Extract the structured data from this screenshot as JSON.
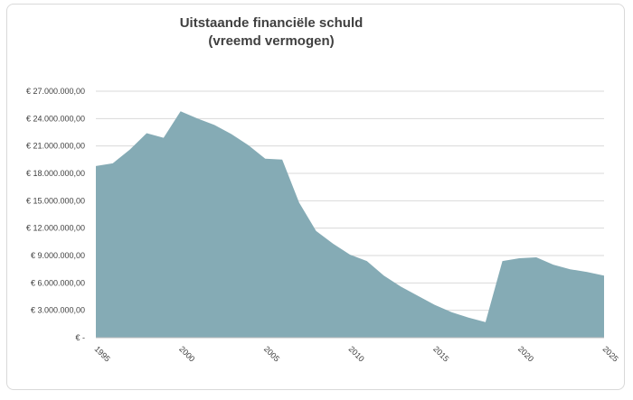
{
  "chart_data": {
    "type": "area",
    "title": [
      "Uitstaande financiële schuld",
      "(vreemd vermogen)"
    ],
    "xlabel": "",
    "ylabel": "",
    "xlim": [
      1995,
      2025
    ],
    "ylim": [
      0,
      27000000
    ],
    "grid": true,
    "y_ticks": [
      {
        "value": 0,
        "label": "€ -"
      },
      {
        "value": 3000000,
        "label": "€ 3.000.000,00"
      },
      {
        "value": 6000000,
        "label": "€ 6.000.000,00"
      },
      {
        "value": 9000000,
        "label": "€ 9.000.000,00"
      },
      {
        "value": 12000000,
        "label": "€ 12.000.000,00"
      },
      {
        "value": 15000000,
        "label": "€ 15.000.000,00"
      },
      {
        "value": 18000000,
        "label": "€ 18.000.000,00"
      },
      {
        "value": 21000000,
        "label": "€ 21.000.000,00"
      },
      {
        "value": 24000000,
        "label": "€ 24.000.000,00"
      },
      {
        "value": 27000000,
        "label": "€ 27.000.000,00"
      }
    ],
    "x_ticks": [
      {
        "value": 1995,
        "label": "1995"
      },
      {
        "value": 2000,
        "label": "2000"
      },
      {
        "value": 2005,
        "label": "2005"
      },
      {
        "value": 2010,
        "label": "2010"
      },
      {
        "value": 2015,
        "label": "2015"
      },
      {
        "value": 2020,
        "label": "2020"
      },
      {
        "value": 2025,
        "label": "2025"
      }
    ],
    "series": [
      {
        "color": "#85abb5",
        "x": [
          1995,
          1996,
          1997,
          1998,
          1999,
          2000,
          2001,
          2002,
          2003,
          2004,
          2005,
          2006,
          2007,
          2008,
          2009,
          2010,
          2011,
          2012,
          2013,
          2014,
          2015,
          2016,
          2017,
          2018,
          2019,
          2020,
          2021,
          2022,
          2023,
          2024,
          2025
        ],
        "y": [
          18800000,
          19100000,
          20600000,
          22400000,
          21900000,
          24800000,
          24000000,
          23300000,
          22300000,
          21100000,
          19600000,
          19500000,
          14800000,
          11700000,
          10300000,
          9100000,
          8400000,
          6800000,
          5600000,
          4600000,
          3600000,
          2800000,
          2200000,
          1700000,
          8400000,
          8700000,
          8800000,
          8000000,
          7500000,
          7200000,
          6800000
        ]
      }
    ]
  }
}
